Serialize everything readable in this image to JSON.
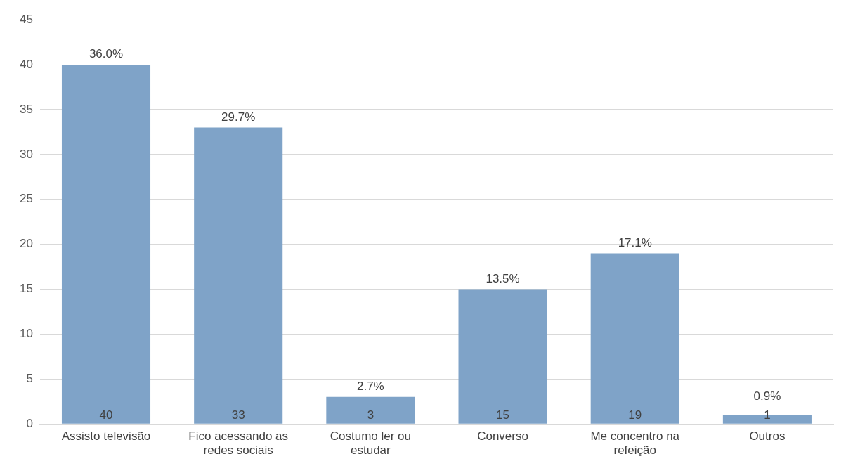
{
  "chart_data": {
    "type": "bar",
    "categories": [
      "Assisto televisão",
      "Fico acessando as redes sociais",
      "Costumo ler ou estudar",
      "Converso",
      "Me concentro na refeição",
      "Outros"
    ],
    "values": [
      40,
      33,
      3,
      15,
      19,
      1
    ],
    "value_labels": [
      "40",
      "33",
      "3",
      "15",
      "19",
      "1"
    ],
    "annotations": [
      {
        "text": "36.0%",
        "x": "Assisto televisão",
        "y": 40
      },
      {
        "text": "29.7%",
        "x": "Fico acessando as redes sociais",
        "y": 33
      },
      {
        "text": "2.7%",
        "x": "Costumo ler ou estudar",
        "y": 3
      },
      {
        "text": "13.5%",
        "x": "Converso",
        "y": 15
      },
      {
        "text": "17.1%",
        "x": "Me concentro na refeição",
        "y": 19
      },
      {
        "text": "0.9%",
        "x": "Outros",
        "y": 1
      }
    ],
    "color": "#7fa3c8",
    "ylim": [
      0,
      45
    ],
    "yticks": [
      0,
      5,
      10,
      15,
      20,
      25,
      30,
      35,
      40,
      45
    ],
    "grid": "y",
    "legend": false
  }
}
